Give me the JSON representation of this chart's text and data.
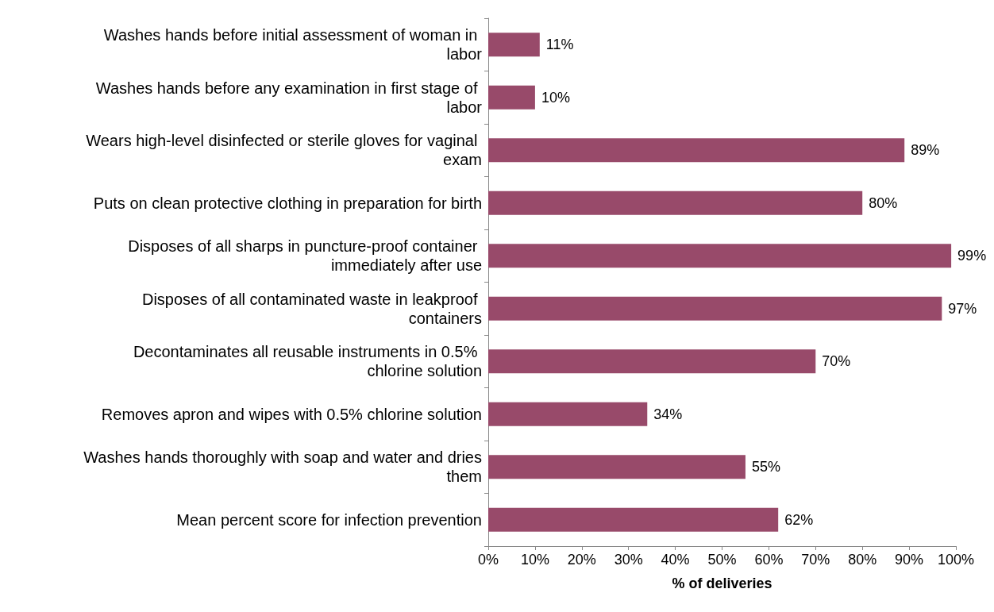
{
  "chart_data": {
    "type": "bar",
    "orientation": "horizontal",
    "xlabel": "% of deliveries",
    "categories": [
      "Washes hands before initial assessment of woman in labor",
      "Washes hands before any examination in first stage of labor",
      "Wears high-level disinfected or sterile gloves for vaginal exam",
      "Puts on clean protective clothing in preparation for birth",
      "Disposes of all sharps in puncture-proof container immediately after use",
      "Disposes of all contaminated waste in leakproof containers",
      "Decontaminates all reusable instruments in 0.5% chlorine solution",
      "Removes apron and wipes with 0.5% chlorine solution",
      "Washes hands thoroughly with soap and water and dries them",
      "Mean percent score for infection prevention"
    ],
    "values": [
      11,
      10,
      89,
      80,
      99,
      97,
      70,
      34,
      55,
      62
    ],
    "value_labels": [
      "11%",
      "10%",
      "89%",
      "80%",
      "99%",
      "97%",
      "70%",
      "34%",
      "55%",
      "62%"
    ],
    "color": "#984a6a",
    "xlim": [
      0,
      100
    ],
    "xticks": [
      {
        "value": 0,
        "label": "0%"
      },
      {
        "value": 10,
        "label": "10%"
      },
      {
        "value": 20,
        "label": "20%"
      },
      {
        "value": 30,
        "label": "30%"
      },
      {
        "value": 40,
        "label": "40%"
      },
      {
        "value": 50,
        "label": "50%"
      },
      {
        "value": 60,
        "label": "60%"
      },
      {
        "value": 70,
        "label": "70%"
      },
      {
        "value": 80,
        "label": "80%"
      },
      {
        "value": 90,
        "label": "90%"
      },
      {
        "value": 100,
        "label": "100%"
      }
    ],
    "grid": false
  }
}
